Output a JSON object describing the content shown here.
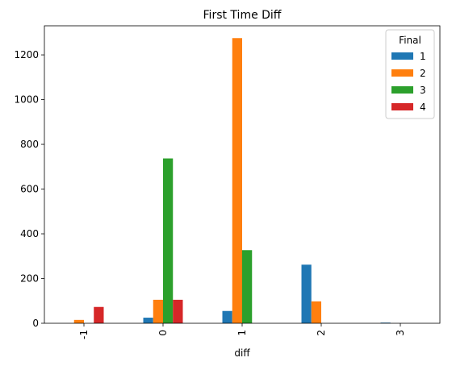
{
  "chart_data": {
    "type": "bar",
    "title": "First Time Diff",
    "xlabel": "diff",
    "ylabel": "",
    "categories": [
      "-1",
      "0",
      "1",
      "2",
      "3"
    ],
    "ylim": [
      0,
      1330
    ],
    "yticks": [
      0,
      200,
      400,
      600,
      800,
      1000,
      1200
    ],
    "legend": {
      "title": "Final",
      "placement": "top-right"
    },
    "series": [
      {
        "name": "1",
        "color": "#1f77b4",
        "values": [
          0,
          25,
          55,
          262,
          3
        ]
      },
      {
        "name": "2",
        "color": "#ff7f0e",
        "values": [
          15,
          105,
          1275,
          98,
          0
        ]
      },
      {
        "name": "3",
        "color": "#2ca02c",
        "values": [
          0,
          737,
          327,
          0,
          0
        ]
      },
      {
        "name": "4",
        "color": "#d62728",
        "values": [
          73,
          105,
          0,
          0,
          0
        ]
      }
    ]
  }
}
